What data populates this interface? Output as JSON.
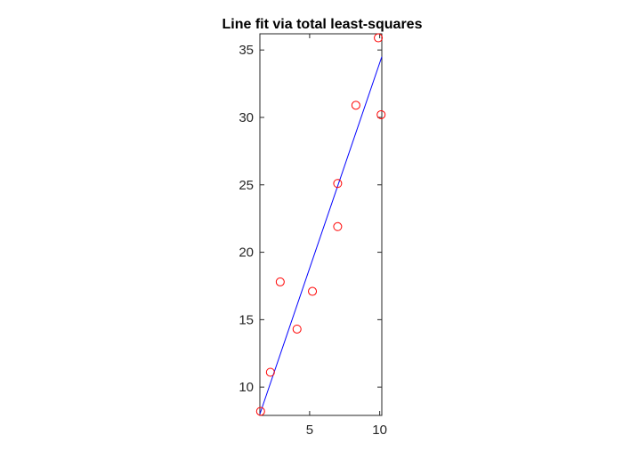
{
  "chart_data": {
    "type": "scatter",
    "title": "Line fit via total least-squares",
    "xlabel": "",
    "ylabel": "",
    "xlim": [
      1.45,
      10.15
    ],
    "ylim": [
      7.9,
      36.2
    ],
    "xticks": [
      5,
      10
    ],
    "yticks": [
      10,
      15,
      20,
      25,
      30,
      35
    ],
    "grid": false,
    "series": [
      {
        "kind": "points",
        "marker": "open-circle",
        "color": "#ff0000",
        "points": [
          {
            "x": 1.5,
            "y": 8.2
          },
          {
            "x": 2.2,
            "y": 11.1
          },
          {
            "x": 2.9,
            "y": 17.8
          },
          {
            "x": 4.1,
            "y": 14.3
          },
          {
            "x": 5.2,
            "y": 17.1
          },
          {
            "x": 7.0,
            "y": 25.1
          },
          {
            "x": 7.0,
            "y": 21.9
          },
          {
            "x": 8.3,
            "y": 30.9
          },
          {
            "x": 9.9,
            "y": 35.9
          },
          {
            "x": 10.1,
            "y": 30.2
          }
        ]
      },
      {
        "kind": "line",
        "color": "#0000ff",
        "points": [
          {
            "x": 1.45,
            "y": 8.0
          },
          {
            "x": 10.15,
            "y": 34.5
          }
        ]
      }
    ]
  }
}
